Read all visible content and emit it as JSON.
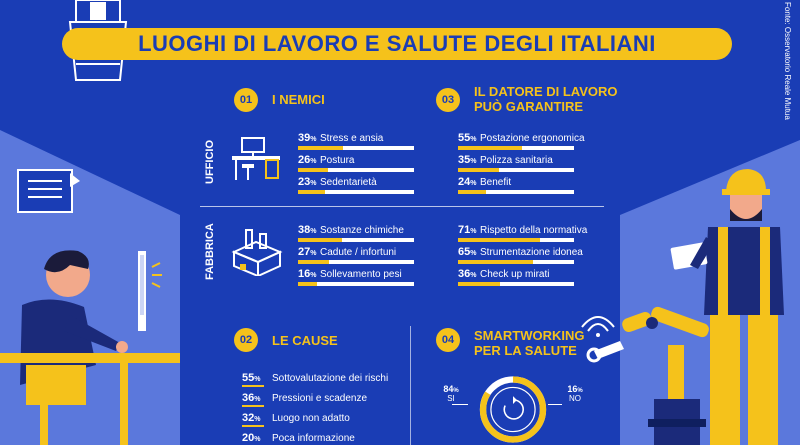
{
  "title": "LUOGHI DI LAVORO E SALUTE DEGLI ITALIANI",
  "source": "Fonte: Osservatorio Reale Mutua",
  "sections": {
    "nemici": {
      "num": "01",
      "title": "I NEMICI"
    },
    "datore": {
      "num": "03",
      "title_line1": "IL DATORE DI LAVORO",
      "title_line2": "PUÒ GARANTIRE"
    },
    "cause": {
      "num": "02",
      "title": "LE CAUSE"
    },
    "smart": {
      "num": "04",
      "title_line1": "SMARTWORKING",
      "title_line2": "PER LA SALUTE"
    }
  },
  "side_labels": {
    "ufficio": "UFFICIO",
    "fabbrica": "FABBRICA"
  },
  "ufficio_nemici": [
    {
      "pct": "39",
      "unit": "%",
      "label": "Stress e ansia",
      "value": 39
    },
    {
      "pct": "26",
      "unit": "%",
      "label": "Postura",
      "value": 26
    },
    {
      "pct": "23",
      "unit": "%",
      "label": "Sedentarietà",
      "value": 23
    }
  ],
  "ufficio_datore": [
    {
      "pct": "55",
      "unit": "%",
      "label": "Postazione ergonomica",
      "value": 55
    },
    {
      "pct": "35",
      "unit": "%",
      "label": "Polizza sanitaria",
      "value": 35
    },
    {
      "pct": "24",
      "unit": "%",
      "label": "Benefit",
      "value": 24
    }
  ],
  "fabbrica_nemici": [
    {
      "pct": "38",
      "unit": "%",
      "label": "Sostanze chimiche",
      "value": 38
    },
    {
      "pct": "27",
      "unit": "%",
      "label": "Cadute / infortuni",
      "value": 27
    },
    {
      "pct": "16",
      "unit": "%",
      "label": "Sollevamento pesi",
      "value": 16
    }
  ],
  "fabbrica_datore": [
    {
      "pct": "71",
      "unit": "%",
      "label": "Rispetto della normativa",
      "value": 71
    },
    {
      "pct": "65",
      "unit": "%",
      "label": "Strumentazione idonea",
      "value": 65
    },
    {
      "pct": "36",
      "unit": "%",
      "label": "Check up mirati",
      "value": 36
    }
  ],
  "cause_items": [
    {
      "pct": "55",
      "unit": "%",
      "label": "Sottovalutazione dei rischi"
    },
    {
      "pct": "36",
      "unit": "%",
      "label": "Pressioni e scadenze"
    },
    {
      "pct": "32",
      "unit": "%",
      "label": "Luogo non adatto"
    },
    {
      "pct": "20",
      "unit": "%",
      "label": "Poca informazione"
    }
  ],
  "smart_donut": {
    "si_pct": "84",
    "si_label": "SI",
    "si_value": 84,
    "no_pct": "16",
    "no_label": "NO",
    "no_value": 16,
    "unit": "%"
  },
  "colors": {
    "background": "#1a3db5",
    "accent": "#f5c21b",
    "panel": "#4f6fd6"
  }
}
